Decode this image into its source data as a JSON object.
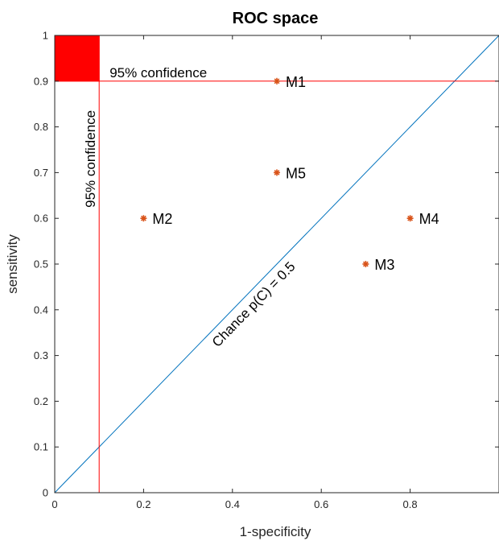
{
  "chart_data": {
    "type": "scatter",
    "title": "ROC space",
    "xlabel": "1-specificity",
    "ylabel": "sensitivity",
    "xlim": [
      0,
      1
    ],
    "ylim": [
      0,
      1
    ],
    "x_ticks": [
      0,
      0.2,
      0.4,
      0.6,
      0.8
    ],
    "x_tick_labels": [
      "0",
      "0.2",
      "0.4",
      "0.6",
      "0.8"
    ],
    "y_ticks": [
      0,
      0.1,
      0.2,
      0.3,
      0.4,
      0.5,
      0.6,
      0.7,
      0.8,
      0.9,
      1
    ],
    "y_tick_labels": [
      "0",
      "0.1",
      "0.2",
      "0.3",
      "0.4",
      "0.5",
      "0.6",
      "0.7",
      "0.8",
      "0.9",
      "1"
    ],
    "grid": false,
    "points": [
      {
        "label": "M1",
        "x": 0.5,
        "y": 0.9
      },
      {
        "label": "M2",
        "x": 0.2,
        "y": 0.6
      },
      {
        "label": "M3",
        "x": 0.7,
        "y": 0.5
      },
      {
        "label": "M4",
        "x": 0.8,
        "y": 0.6
      },
      {
        "label": "M5",
        "x": 0.5,
        "y": 0.7
      }
    ],
    "chance_line": {
      "from": [
        0,
        0
      ],
      "to": [
        1,
        1
      ],
      "label": "Chance p(C) = 0.5"
    },
    "confidence_threshold_x": 0.1,
    "confidence_threshold_y": 0.9,
    "confidence_label_horizontal": "95% confidence",
    "confidence_label_vertical": "95% confidence",
    "confidence_region": {
      "x": [
        0,
        0.1
      ],
      "y": [
        0.9,
        1
      ]
    }
  },
  "colors": {
    "marker": "#d95319",
    "chance_line": "#0072bd",
    "confidence": "#ff0000",
    "axis": "#262626"
  }
}
